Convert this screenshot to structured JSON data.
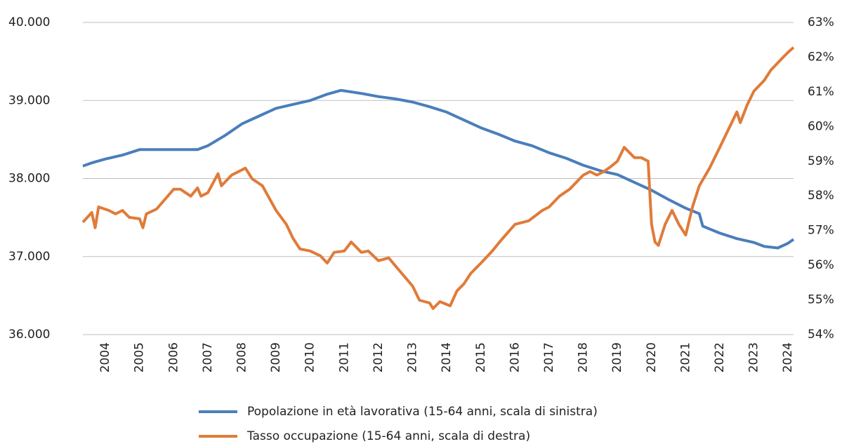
{
  "chart_data": {
    "type": "line",
    "xlim": [
      2003.34,
      2024.16
    ],
    "xticks": [
      2004,
      2005,
      2006,
      2007,
      2008,
      2009,
      2010,
      2011,
      2012,
      2013,
      2014,
      2015,
      2016,
      2017,
      2018,
      2019,
      2020,
      2021,
      2022,
      2023,
      2024
    ],
    "ylim": [
      36000,
      40000
    ],
    "yticks": [
      {
        "value": 36000,
        "label": "36.000"
      },
      {
        "value": 37000,
        "label": "37.000"
      },
      {
        "value": 38000,
        "label": "38.000"
      },
      {
        "value": 39000,
        "label": "39.000"
      },
      {
        "value": 40000,
        "label": "40.000"
      }
    ],
    "y2lim": [
      54,
      63
    ],
    "y2ticks": [
      {
        "value": 54,
        "label": "54%"
      },
      {
        "value": 55,
        "label": "55%"
      },
      {
        "value": 56,
        "label": "56%"
      },
      {
        "value": 57,
        "label": "57%"
      },
      {
        "value": 58,
        "label": "58%"
      },
      {
        "value": 59,
        "label": "59%"
      },
      {
        "value": 60,
        "label": "60%"
      },
      {
        "value": 61,
        "label": "61%"
      },
      {
        "value": 62,
        "label": "62%"
      },
      {
        "value": 63,
        "label": "63%"
      }
    ],
    "grid": true,
    "series": [
      {
        "name": "Popolazione in età lavorativa (15-64 anni, scala di sinistra)",
        "color": "#4a7ebb",
        "axis": "y",
        "x": [
          2003.34,
          2003.6,
          2004.0,
          2004.5,
          2005.0,
          2006.7,
          2007.0,
          2007.5,
          2008.0,
          2008.5,
          2009.0,
          2009.5,
          2010.0,
          2010.5,
          2010.9,
          2011.5,
          2012.0,
          2012.5,
          2013.0,
          2013.5,
          2014.0,
          2014.5,
          2015.0,
          2015.5,
          2016.0,
          2016.5,
          2017.0,
          2017.5,
          2018.0,
          2018.5,
          2019.0,
          2019.5,
          2020.0,
          2020.5,
          2021.0,
          2021.4,
          2021.5,
          2022.0,
          2022.5,
          2023.0,
          2023.3,
          2023.7,
          2024.0,
          2024.16
        ],
        "values": [
          38160,
          38200,
          38250,
          38300,
          38370,
          38370,
          38420,
          38550,
          38700,
          38800,
          38900,
          38950,
          39000,
          39080,
          39130,
          39090,
          39050,
          39020,
          38980,
          38920,
          38850,
          38750,
          38650,
          38570,
          38480,
          38420,
          38330,
          38260,
          38170,
          38100,
          38050,
          37950,
          37850,
          37730,
          37620,
          37550,
          37390,
          37300,
          37230,
          37180,
          37130,
          37110,
          37170,
          37220
        ]
      },
      {
        "name": "Tasso occupazione (15-64 anni, scala di destra)",
        "color": "#e07b39",
        "axis": "y2",
        "x": [
          2003.34,
          2003.6,
          2003.7,
          2003.8,
          2004.1,
          2004.3,
          2004.5,
          2004.7,
          2005.0,
          2005.1,
          2005.2,
          2005.5,
          2006.0,
          2006.2,
          2006.5,
          2006.7,
          2006.8,
          2007.0,
          2007.3,
          2007.4,
          2007.7,
          2008.1,
          2008.3,
          2008.6,
          2009.0,
          2009.3,
          2009.5,
          2009.7,
          2010.0,
          2010.3,
          2010.5,
          2010.7,
          2011.0,
          2011.2,
          2011.5,
          2011.7,
          2012.0,
          2012.3,
          2012.6,
          2013.0,
          2013.2,
          2013.5,
          2013.6,
          2013.8,
          2014.1,
          2014.3,
          2014.5,
          2014.7,
          2015.0,
          2015.3,
          2015.6,
          2016.0,
          2016.4,
          2016.8,
          2017.0,
          2017.3,
          2017.6,
          2018.0,
          2018.2,
          2018.4,
          2018.6,
          2018.8,
          2019.0,
          2019.2,
          2019.5,
          2019.7,
          2019.9,
          2020.0,
          2020.1,
          2020.2,
          2020.4,
          2020.6,
          2020.8,
          2021.0,
          2021.2,
          2021.4,
          2021.7,
          2022.0,
          2022.3,
          2022.5,
          2022.6,
          2022.8,
          2023.0,
          2023.3,
          2023.5,
          2023.8,
          2024.0,
          2024.16
        ],
        "values": [
          57.24,
          57.52,
          57.08,
          57.68,
          57.58,
          57.48,
          57.58,
          57.38,
          57.34,
          57.08,
          57.48,
          57.62,
          58.19,
          58.19,
          57.99,
          58.23,
          57.99,
          58.09,
          58.64,
          58.29,
          58.6,
          58.8,
          58.49,
          58.29,
          57.58,
          57.18,
          56.77,
          56.47,
          56.41,
          56.27,
          56.06,
          56.37,
          56.41,
          56.67,
          56.37,
          56.41,
          56.13,
          56.21,
          55.86,
          55.4,
          54.99,
          54.91,
          54.75,
          54.95,
          54.83,
          55.26,
          55.46,
          55.76,
          56.06,
          56.37,
          56.73,
          57.18,
          57.28,
          57.58,
          57.68,
          57.99,
          58.19,
          58.6,
          58.7,
          58.6,
          58.7,
          58.84,
          59.0,
          59.4,
          59.1,
          59.1,
          59.0,
          57.18,
          56.67,
          56.57,
          57.18,
          57.58,
          57.18,
          56.87,
          57.68,
          58.29,
          58.8,
          59.4,
          60.01,
          60.42,
          60.11,
          60.62,
          61.02,
          61.33,
          61.63,
          61.94,
          62.14,
          62.28
        ]
      }
    ]
  }
}
